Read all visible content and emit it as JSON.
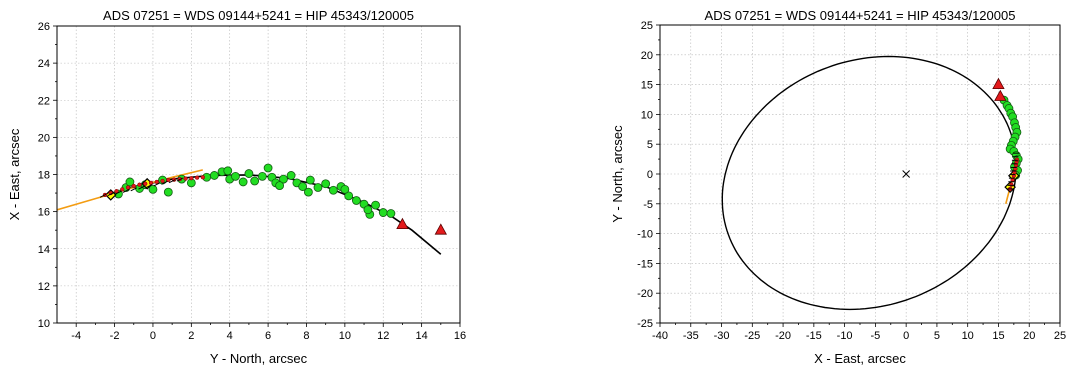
{
  "chart_data": [
    {
      "type": "scatter",
      "title": "ADS 07251 = WDS 09144+5241 = HIP 45343/120005",
      "xlabel": "Y - North, arcsec",
      "ylabel": "X - East, arcsec",
      "xlim": [
        -5,
        16
      ],
      "ylim": [
        10,
        26
      ],
      "xticks": [
        -4,
        -2,
        0,
        2,
        4,
        6,
        8,
        10,
        12,
        14,
        16
      ],
      "yticks": [
        10,
        12,
        14,
        16,
        18,
        20,
        22,
        24,
        26
      ],
      "grid": true,
      "series": [
        {
          "kind": "line",
          "color": "#000000",
          "x": [
            -2.6,
            -1,
            1,
            3,
            5,
            7,
            9,
            11,
            12.5,
            13.5,
            15
          ],
          "y": [
            16.85,
            17.35,
            17.75,
            17.95,
            17.98,
            17.8,
            17.35,
            16.5,
            15.7,
            15.0,
            13.7
          ]
        },
        {
          "kind": "line",
          "color": "#f39c12",
          "x": [
            -5,
            -3,
            -1,
            1,
            2.6
          ],
          "y": [
            16.1,
            16.7,
            17.3,
            17.85,
            18.25
          ]
        },
        {
          "kind": "scatter",
          "marker": "circle",
          "color": "#22dd22",
          "x": [
            -1.8,
            -1.4,
            -1.2,
            -0.7,
            -0.4,
            0,
            0.5,
            0.8,
            1.5,
            2,
            2.8,
            3.2,
            3.6,
            4,
            4.3,
            4.7,
            5,
            5.3,
            5.7,
            6,
            6.2,
            6.4,
            6.8,
            7.2,
            7.5,
            7.8,
            8.2,
            8.6,
            9,
            9.4,
            9.8,
            10.2,
            10.6,
            11,
            11.3,
            11.6,
            12,
            12.4,
            3.9,
            6.6,
            8.1,
            10,
            11.2
          ],
          "y": [
            16.95,
            17.3,
            17.6,
            17.25,
            17.45,
            17.2,
            17.7,
            17.05,
            17.75,
            17.55,
            17.85,
            17.95,
            18.15,
            17.75,
            17.9,
            17.6,
            18.05,
            17.65,
            17.9,
            18.35,
            17.85,
            17.55,
            17.75,
            17.95,
            17.55,
            17.35,
            17.7,
            17.3,
            17.5,
            17.15,
            17.35,
            16.85,
            16.6,
            16.4,
            15.85,
            16.35,
            15.95,
            15.9,
            18.2,
            17.4,
            17.05,
            17.2,
            16.1
          ]
        },
        {
          "kind": "scatter",
          "marker": "triangle",
          "color": "#e31a1c",
          "x": [
            13,
            15
          ],
          "y": [
            15.3,
            15.0
          ]
        },
        {
          "kind": "scatter",
          "marker": "diamond",
          "color": "#ffff00",
          "x": [
            -2.2,
            -0.3
          ],
          "y": [
            16.9,
            17.5
          ]
        },
        {
          "kind": "scatter",
          "marker": "small",
          "color": "#e31a1c",
          "x": [
            -2.5,
            -2.2,
            -1.9,
            -1.6,
            -1.3,
            -1,
            -0.7,
            -0.4,
            -0.1,
            0.2,
            0.5,
            0.8,
            1.1,
            1.4,
            1.7,
            2,
            2.3,
            2.6
          ],
          "y": [
            16.9,
            17.0,
            17.1,
            17.2,
            17.3,
            17.38,
            17.45,
            17.5,
            17.55,
            17.6,
            17.65,
            17.7,
            17.72,
            17.75,
            17.78,
            17.8,
            17.83,
            17.85
          ]
        }
      ]
    },
    {
      "type": "scatter",
      "title": "ADS 07251 = WDS 09144+5241 = HIP 45343/120005",
      "xlabel": "X - East, arcsec",
      "ylabel": "Y - North, arcsec",
      "xlim": [
        -40,
        25
      ],
      "ylim": [
        -25,
        25
      ],
      "xticks": [
        -40,
        -35,
        -30,
        -25,
        -20,
        -15,
        -10,
        -5,
        0,
        5,
        10,
        15,
        20,
        25
      ],
      "yticks": [
        -25,
        -20,
        -15,
        -10,
        -5,
        0,
        5,
        10,
        15,
        20,
        25
      ],
      "grid": true,
      "ellipse": {
        "kind": "orbit",
        "color": "#000000",
        "center": [
          -6,
          -1.5
        ],
        "semi_axes": [
          24.5,
          20.5
        ],
        "rotation_deg": 24
      },
      "center_mark": {
        "x": 0,
        "y": 0,
        "marker": "x"
      },
      "series": [
        {
          "kind": "line",
          "color": "#f39c12",
          "x": [
            16.2,
            16.7,
            17.3,
            17.9,
            18.1
          ],
          "y": [
            -5,
            -3,
            -1,
            1,
            2.5
          ]
        },
        {
          "kind": "scatter",
          "marker": "circle",
          "color": "#22dd22",
          "x": [
            15.9,
            16.4,
            16.7,
            17.0,
            17.3,
            17.6,
            17.8,
            18.0,
            17.7,
            17.4,
            17.1,
            16.9,
            17.5,
            17.9,
            18.2,
            17.9,
            17.6,
            18.1,
            17.8
          ],
          "y": [
            12.4,
            11.5,
            11.0,
            10.2,
            9.6,
            8.6,
            7.8,
            7.0,
            6.2,
            5.5,
            4.8,
            4.2,
            3.8,
            3.1,
            2.5,
            1.8,
            1.2,
            0.6,
            -0.2
          ]
        },
        {
          "kind": "scatter",
          "marker": "triangle",
          "color": "#e31a1c",
          "x": [
            15.0,
            15.3
          ],
          "y": [
            15.0,
            13.0
          ]
        },
        {
          "kind": "scatter",
          "marker": "diamond",
          "color": "#ffff00",
          "x": [
            17.5,
            16.9
          ],
          "y": [
            -0.3,
            -2.2
          ]
        },
        {
          "kind": "scatter",
          "marker": "small",
          "color": "#e31a1c",
          "x": [
            16.9,
            17.1,
            17.3,
            17.5,
            17.6,
            17.75,
            17.85,
            17.95,
            18.0
          ],
          "y": [
            -2.5,
            -1.8,
            -1.0,
            -0.3,
            0.3,
            0.9,
            1.5,
            2.0,
            2.4
          ]
        }
      ]
    }
  ]
}
